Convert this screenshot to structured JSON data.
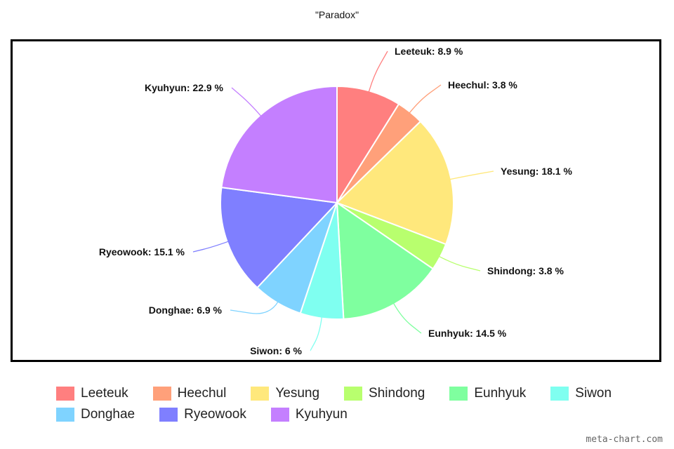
{
  "chart_data": {
    "type": "pie",
    "title": "\"Paradox\"",
    "slices": [
      {
        "name": "Leeteuk",
        "value": 8.9,
        "label": "Leeteuk: 8.9 %",
        "color": "#ff7f7f"
      },
      {
        "name": "Heechul",
        "value": 3.8,
        "label": "Heechul: 3.8 %",
        "color": "#ffa07a"
      },
      {
        "name": "Yesung",
        "value": 18.1,
        "label": "Yesung: 18.1 %",
        "color": "#ffe87c"
      },
      {
        "name": "Shindong",
        "value": 3.8,
        "label": "Shindong: 3.8 %",
        "color": "#b8ff6e"
      },
      {
        "name": "Eunhyuk",
        "value": 14.5,
        "label": "Eunhyuk: 14.5 %",
        "color": "#7fff9f"
      },
      {
        "name": "Siwon",
        "value": 6,
        "label": "Siwon: 6 %",
        "color": "#7ffff0"
      },
      {
        "name": "Donghae",
        "value": 6.9,
        "label": "Donghae: 6.9 %",
        "color": "#7fd3ff"
      },
      {
        "name": "Ryeowook",
        "value": 15.1,
        "label": "Ryeowook: 15.1 %",
        "color": "#7f7fff"
      },
      {
        "name": "Kyuhyun",
        "value": 22.9,
        "label": "Kyuhyun: 22.9 %",
        "color": "#c47fff"
      }
    ],
    "legend_position": "bottom",
    "start_angle": "top, clockwise"
  },
  "watermark": "meta-chart.com"
}
